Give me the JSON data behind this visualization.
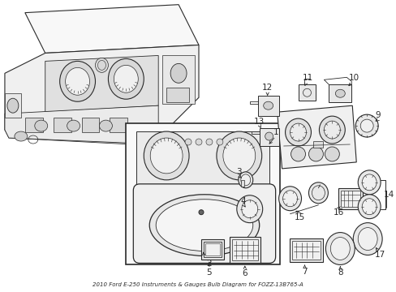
{
  "title": "2010 Ford E-250 Instruments & Gauges Bulb Diagram for FOZZ-13B765-A",
  "bg_color": "#ffffff",
  "line_color": "#2a2a2a",
  "fig_width": 4.89,
  "fig_height": 3.6,
  "dpi": 100
}
